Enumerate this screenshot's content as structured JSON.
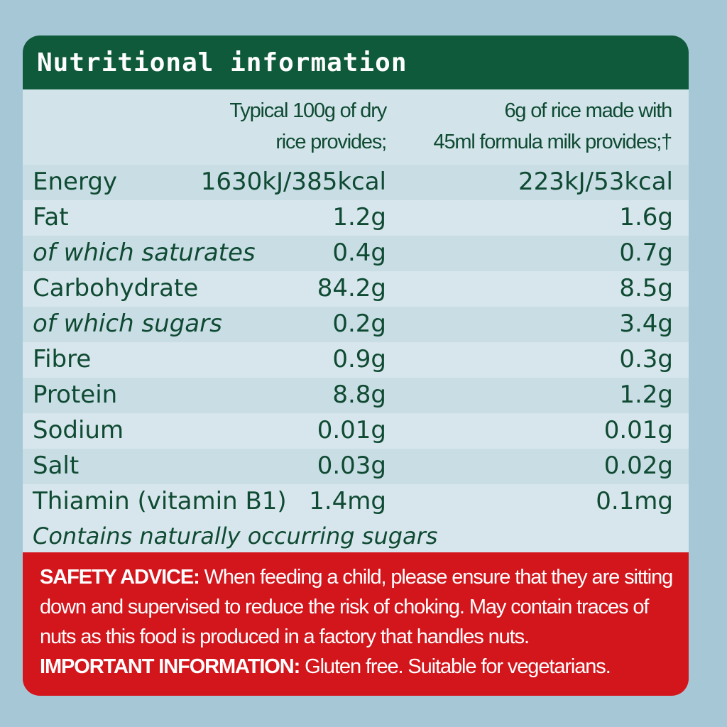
{
  "title": "Nutritional information",
  "columns": {
    "col1": [
      "Typical 100g of dry",
      "rice provides;"
    ],
    "col2": [
      "6g of rice made with",
      "45ml formula milk provides;†"
    ]
  },
  "rows": [
    {
      "name": "Energy",
      "v1": "1630kJ/385kcal",
      "v2": "223kJ/53kcal"
    },
    {
      "name": "Fat",
      "v1": "1.2g",
      "v2": "1.6g"
    },
    {
      "name": "of which saturates",
      "v1": "0.4g",
      "v2": "0.7g"
    },
    {
      "name": "Carbohydrate",
      "v1": "84.2g",
      "v2": "8.5g"
    },
    {
      "name": "of which sugars",
      "v1": "0.2g",
      "v2": "3.4g"
    },
    {
      "name": "Fibre",
      "v1": "0.9g",
      "v2": "0.3g"
    },
    {
      "name": "Protein",
      "v1": "8.8g",
      "v2": "1.2g"
    },
    {
      "name": "Sodium",
      "v1": "0.01g",
      "v2": "0.01g"
    },
    {
      "name": "Salt",
      "v1": "0.03g",
      "v2": "0.02g"
    },
    {
      "name": "Thiamin (vitamin B1)",
      "v1": "1.4mg",
      "v2": "0.1mg"
    }
  ],
  "note": "Contains naturally occurring sugars",
  "safety": {
    "label": "SAFETY ADVICE:",
    "line1": " When feeding a child, please ensure that they are sitting",
    "line2": "down and supervised to reduce the risk of choking. May contain traces of",
    "line3": "nuts as this food is produced in a factory that handles nuts.",
    "important_label": "IMPORTANT INFORMATION:",
    "important_text": " Gluten free. Suitable for vegetarians."
  },
  "colors": {
    "header": "#0f5a3a",
    "text": "#0f4a32",
    "safety_bg": "#d3151c",
    "background": "#a6c8d6"
  }
}
